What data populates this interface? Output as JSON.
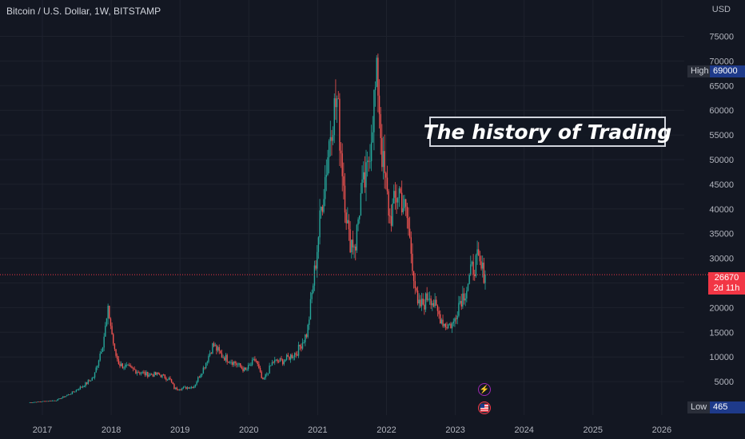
{
  "header": {
    "symbol": "Bitcoin / U.S. Dollar, 1W, BITSTAMP",
    "currency": "USD"
  },
  "annotation": {
    "text": "The history of Trading"
  },
  "markers": {
    "high_label": "High",
    "high_value": "69000",
    "low_label": "Low",
    "low_value": "465",
    "current_price": "26670",
    "countdown": "2d 11h"
  },
  "events": [
    {
      "icon": "lightning-icon",
      "color": "#9c27b0"
    },
    {
      "icon": "us-flag-icon",
      "color": "#f23645"
    }
  ],
  "colors": {
    "background": "#131722",
    "up": "#26a69a",
    "down": "#ef5350",
    "grid": "#1e222d",
    "current_line": "#f23645"
  },
  "chart_data": {
    "type": "candlestick",
    "title": "",
    "x_ticks": [
      "2017",
      "2018",
      "2019",
      "2020",
      "2021",
      "2022",
      "2023",
      "2024",
      "2025",
      "2026"
    ],
    "y_ticks": [
      5000,
      10000,
      15000,
      20000,
      25000,
      30000,
      35000,
      40000,
      45000,
      50000,
      55000,
      60000,
      65000,
      70000,
      75000
    ],
    "ylim": [
      0,
      80000
    ],
    "xlim": [
      2016.8,
      2026.5
    ],
    "grid": true,
    "current_price": 26670,
    "high": 69000,
    "low": 465,
    "price_path": [
      [
        2016.8,
        750
      ],
      [
        2017.0,
        1000
      ],
      [
        2017.2,
        1200
      ],
      [
        2017.4,
        2500
      ],
      [
        2017.6,
        4200
      ],
      [
        2017.75,
        6000
      ],
      [
        2017.88,
        13000
      ],
      [
        2017.96,
        19500
      ],
      [
        2018.05,
        11000
      ],
      [
        2018.12,
        8500
      ],
      [
        2018.3,
        7500
      ],
      [
        2018.5,
        6500
      ],
      [
        2018.7,
        6400
      ],
      [
        2018.85,
        5500
      ],
      [
        2018.92,
        3600
      ],
      [
        2019.0,
        3600
      ],
      [
        2019.2,
        4000
      ],
      [
        2019.35,
        8000
      ],
      [
        2019.48,
        12500
      ],
      [
        2019.6,
        10300
      ],
      [
        2019.8,
        8800
      ],
      [
        2019.95,
        7200
      ],
      [
        2020.1,
        9500
      ],
      [
        2020.2,
        5000
      ],
      [
        2020.35,
        9000
      ],
      [
        2020.5,
        9200
      ],
      [
        2020.7,
        11000
      ],
      [
        2020.85,
        15000
      ],
      [
        2020.97,
        29000
      ],
      [
        2021.05,
        40000
      ],
      [
        2021.12,
        48000
      ],
      [
        2021.2,
        58000
      ],
      [
        2021.28,
        62000
      ],
      [
        2021.38,
        45000
      ],
      [
        2021.45,
        34000
      ],
      [
        2021.55,
        33000
      ],
      [
        2021.62,
        42000
      ],
      [
        2021.72,
        47000
      ],
      [
        2021.82,
        62000
      ],
      [
        2021.87,
        67000
      ],
      [
        2021.94,
        50000
      ],
      [
        2022.05,
        38000
      ],
      [
        2022.18,
        44000
      ],
      [
        2022.3,
        38000
      ],
      [
        2022.38,
        29000
      ],
      [
        2022.45,
        20000
      ],
      [
        2022.55,
        21000
      ],
      [
        2022.62,
        23000
      ],
      [
        2022.72,
        19500
      ],
      [
        2022.85,
        16500
      ],
      [
        2022.97,
        16600
      ],
      [
        2023.05,
        21000
      ],
      [
        2023.15,
        23500
      ],
      [
        2023.25,
        28000
      ],
      [
        2023.32,
        29500
      ],
      [
        2023.38,
        27500
      ],
      [
        2023.45,
        26670
      ]
    ]
  }
}
